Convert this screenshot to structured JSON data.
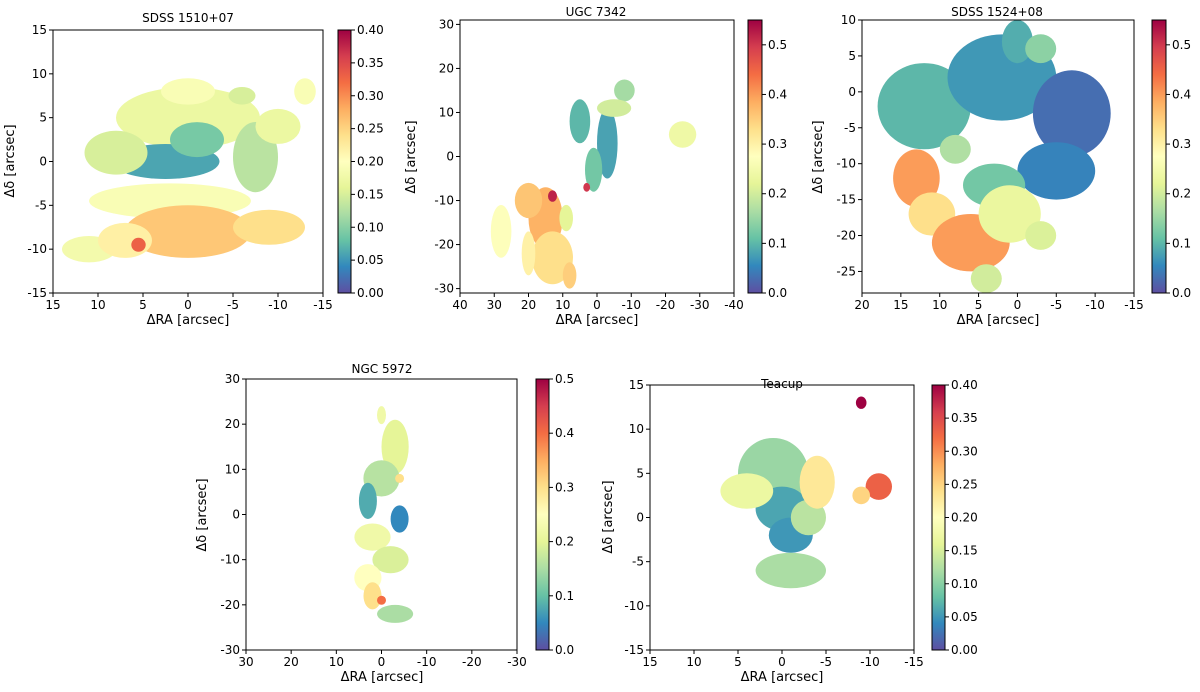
{
  "figure": {
    "type": "multi-panel spatial map with colorbars",
    "colormap": "Spectral_r"
  },
  "chart_data": [
    {
      "type": "heatmap",
      "title": "SDSS 1510+07",
      "xlabel": "ΔRA [arcsec]",
      "ylabel": "Δδ [arcsec]",
      "xlim": [
        15,
        -15
      ],
      "ylim": [
        -15,
        15
      ],
      "xticks": [
        15,
        10,
        5,
        0,
        -5,
        -10,
        -15
      ],
      "yticks": [
        -15,
        -10,
        -5,
        0,
        5,
        10,
        15
      ],
      "colorbar": {
        "range": [
          0.0,
          0.4
        ],
        "ticks": [
          "0.00",
          "0.05",
          "0.10",
          "0.15",
          "0.20",
          "0.25",
          "0.30",
          "0.35",
          "0.40"
        ]
      },
      "blobs": [
        {
          "x": 0,
          "y": 5,
          "rx": 8,
          "ry": 3.5,
          "value": 0.17
        },
        {
          "x": 0,
          "y": 8,
          "rx": 3,
          "ry": 1.5,
          "value": 0.19
        },
        {
          "x": 2.5,
          "y": 0,
          "rx": 6,
          "ry": 2,
          "value": 0.06
        },
        {
          "x": -1,
          "y": 2.5,
          "rx": 3,
          "ry": 2,
          "value": 0.09
        },
        {
          "x": -7.5,
          "y": 0.5,
          "rx": 2.5,
          "ry": 4,
          "value": 0.13
        },
        {
          "x": 8,
          "y": 1,
          "rx": 3.5,
          "ry": 2.5,
          "value": 0.15
        },
        {
          "x": -10,
          "y": 4,
          "rx": 2.5,
          "ry": 2,
          "value": 0.17
        },
        {
          "x": 2,
          "y": -4.5,
          "rx": 9,
          "ry": 2,
          "value": 0.19
        },
        {
          "x": 0,
          "y": -8,
          "rx": 7,
          "ry": 3,
          "value": 0.26
        },
        {
          "x": -9,
          "y": -7.5,
          "rx": 4,
          "ry": 2,
          "value": 0.24
        },
        {
          "x": 11,
          "y": -10,
          "rx": 3,
          "ry": 1.5,
          "value": 0.18
        },
        {
          "x": 7,
          "y": -9,
          "rx": 3,
          "ry": 2,
          "value": 0.22
        },
        {
          "x": 5.5,
          "y": -9.5,
          "rx": 0.8,
          "ry": 0.8,
          "value": 0.33
        },
        {
          "x": -13,
          "y": 8,
          "rx": 1.2,
          "ry": 1.5,
          "value": 0.19
        },
        {
          "x": -6,
          "y": 7.5,
          "rx": 1.5,
          "ry": 1,
          "value": 0.15
        }
      ]
    },
    {
      "type": "heatmap",
      "title": "UGC 7342",
      "xlabel": "ΔRA [arcsec]",
      "ylabel": "Δδ [arcsec]",
      "xlim": [
        40,
        -40
      ],
      "ylim": [
        -31,
        31
      ],
      "xticks": [
        40,
        30,
        20,
        10,
        0,
        -10,
        -20,
        -30,
        -40
      ],
      "yticks": [
        -30,
        -20,
        -10,
        0,
        10,
        20,
        30
      ],
      "colorbar": {
        "range": [
          0.0,
          0.55
        ],
        "ticks": [
          "0.0",
          "0.1",
          "0.2",
          "0.3",
          "0.4",
          "0.5"
        ]
      },
      "blobs": [
        {
          "x": -3,
          "y": 3,
          "rx": 3,
          "ry": 8,
          "value": 0.08
        },
        {
          "x": 1,
          "y": -3,
          "rx": 2.5,
          "ry": 5,
          "value": 0.12
        },
        {
          "x": 5,
          "y": 8,
          "rx": 3,
          "ry": 5,
          "value": 0.1
        },
        {
          "x": -8,
          "y": 15,
          "rx": 3,
          "ry": 2.5,
          "value": 0.16
        },
        {
          "x": -5,
          "y": 11,
          "rx": 5,
          "ry": 2,
          "value": 0.2
        },
        {
          "x": -25,
          "y": 5,
          "rx": 4,
          "ry": 3,
          "value": 0.24
        },
        {
          "x": 15,
          "y": -14,
          "rx": 5,
          "ry": 7,
          "value": 0.38
        },
        {
          "x": 13,
          "y": -23,
          "rx": 6,
          "ry": 6,
          "value": 0.33
        },
        {
          "x": 20,
          "y": -10,
          "rx": 4,
          "ry": 4,
          "value": 0.36
        },
        {
          "x": 28,
          "y": -17,
          "rx": 3,
          "ry": 6,
          "value": 0.27
        },
        {
          "x": 20,
          "y": -22,
          "rx": 2,
          "ry": 5,
          "value": 0.3
        },
        {
          "x": 13,
          "y": -9,
          "rx": 1.3,
          "ry": 1.3,
          "value": 0.52
        },
        {
          "x": 3,
          "y": -7,
          "rx": 1,
          "ry": 1,
          "value": 0.5
        },
        {
          "x": 9,
          "y": -14,
          "rx": 2,
          "ry": 3,
          "value": 0.22
        },
        {
          "x": 8,
          "y": -27,
          "rx": 2,
          "ry": 3,
          "value": 0.35
        }
      ]
    },
    {
      "type": "heatmap",
      "title": "SDSS 1524+08",
      "xlabel": "ΔRA [arcsec]",
      "ylabel": "Δδ [arcsec]",
      "xlim": [
        20,
        -15
      ],
      "ylim": [
        -28,
        10
      ],
      "xticks": [
        20,
        15,
        10,
        5,
        0,
        -5,
        -10,
        -15
      ],
      "yticks": [
        -25,
        -20,
        -15,
        -10,
        -5,
        0,
        5,
        10
      ],
      "colorbar": {
        "range": [
          0.0,
          0.55
        ],
        "ticks": [
          "0.0",
          "0.1",
          "0.2",
          "0.3",
          "0.4",
          "0.5"
        ]
      },
      "blobs": [
        {
          "x": 12,
          "y": -2,
          "rx": 6,
          "ry": 6,
          "value": 0.1
        },
        {
          "x": 2,
          "y": 2,
          "rx": 7,
          "ry": 6,
          "value": 0.07
        },
        {
          "x": -7,
          "y": -3,
          "rx": 5,
          "ry": 6,
          "value": 0.03
        },
        {
          "x": -5,
          "y": -11,
          "rx": 5,
          "ry": 4,
          "value": 0.05
        },
        {
          "x": 0,
          "y": 7,
          "rx": 2,
          "ry": 3,
          "value": 0.09
        },
        {
          "x": -3,
          "y": 6,
          "rx": 2,
          "ry": 2,
          "value": 0.14
        },
        {
          "x": 3,
          "y": -13,
          "rx": 4,
          "ry": 3,
          "value": 0.12
        },
        {
          "x": 13,
          "y": -12,
          "rx": 3,
          "ry": 4,
          "value": 0.4
        },
        {
          "x": 11,
          "y": -17,
          "rx": 3,
          "ry": 3,
          "value": 0.33
        },
        {
          "x": 6,
          "y": -21,
          "rx": 5,
          "ry": 4,
          "value": 0.4
        },
        {
          "x": 1,
          "y": -17,
          "rx": 4,
          "ry": 4,
          "value": 0.23
        },
        {
          "x": -3,
          "y": -20,
          "rx": 2,
          "ry": 2,
          "value": 0.21
        },
        {
          "x": 4,
          "y": -26,
          "rx": 2,
          "ry": 2,
          "value": 0.2
        },
        {
          "x": 8,
          "y": -8,
          "rx": 2,
          "ry": 2,
          "value": 0.17
        }
      ]
    },
    {
      "type": "heatmap",
      "title": "NGC 5972",
      "xlabel": "ΔRA [arcsec]",
      "ylabel": "Δδ [arcsec]",
      "xlim": [
        30,
        -30
      ],
      "ylim": [
        -30,
        30
      ],
      "xticks": [
        30,
        20,
        10,
        0,
        -10,
        -20,
        -30
      ],
      "yticks": [
        -30,
        -20,
        -10,
        0,
        10,
        20,
        30
      ],
      "colorbar": {
        "range": [
          0.0,
          0.5
        ],
        "ticks": [
          "0.0",
          "0.1",
          "0.2",
          "0.3",
          "0.4",
          "0.5"
        ]
      },
      "blobs": [
        {
          "x": -3,
          "y": 15,
          "rx": 3,
          "ry": 6,
          "value": 0.2
        },
        {
          "x": 0,
          "y": 8,
          "rx": 4,
          "ry": 4,
          "value": 0.16
        },
        {
          "x": 3,
          "y": 3,
          "rx": 2,
          "ry": 4,
          "value": 0.08
        },
        {
          "x": -4,
          "y": -1,
          "rx": 2,
          "ry": 3,
          "value": 0.05
        },
        {
          "x": 2,
          "y": -5,
          "rx": 4,
          "ry": 3,
          "value": 0.22
        },
        {
          "x": -2,
          "y": -10,
          "rx": 4,
          "ry": 3,
          "value": 0.19
        },
        {
          "x": 3,
          "y": -14,
          "rx": 3,
          "ry": 3,
          "value": 0.25
        },
        {
          "x": 2,
          "y": -18,
          "rx": 2,
          "ry": 3,
          "value": 0.3
        },
        {
          "x": 0,
          "y": -19,
          "rx": 1,
          "ry": 1,
          "value": 0.4
        },
        {
          "x": -3,
          "y": -22,
          "rx": 4,
          "ry": 2,
          "value": 0.15
        },
        {
          "x": 0,
          "y": 22,
          "rx": 1,
          "ry": 2,
          "value": 0.22
        },
        {
          "x": -4,
          "y": 8,
          "rx": 1,
          "ry": 1,
          "value": 0.3
        }
      ]
    },
    {
      "type": "heatmap",
      "title": "Teacup",
      "xlabel": "ΔRA [arcsec]",
      "ylabel": "Δδ [arcsec]",
      "xlim": [
        15,
        -15
      ],
      "ylim": [
        -15,
        15
      ],
      "xticks": [
        15,
        10,
        5,
        0,
        -5,
        -10,
        -15
      ],
      "yticks": [
        -15,
        -10,
        -5,
        0,
        5,
        10,
        15
      ],
      "colorbar": {
        "range": [
          0.0,
          0.4
        ],
        "ticks": [
          "0.00",
          "0.05",
          "0.10",
          "0.15",
          "0.20",
          "0.25",
          "0.30",
          "0.35",
          "0.40"
        ]
      },
      "blobs": [
        {
          "x": 1,
          "y": 5,
          "rx": 4,
          "ry": 4,
          "value": 0.11
        },
        {
          "x": 0,
          "y": 1,
          "rx": 3,
          "ry": 2.5,
          "value": 0.06
        },
        {
          "x": -1,
          "y": -2,
          "rx": 2.5,
          "ry": 2,
          "value": 0.05
        },
        {
          "x": -3,
          "y": 0,
          "rx": 2,
          "ry": 2,
          "value": 0.13
        },
        {
          "x": -4,
          "y": 4,
          "rx": 2,
          "ry": 3,
          "value": 0.23
        },
        {
          "x": 4,
          "y": 3,
          "rx": 3,
          "ry": 2,
          "value": 0.17
        },
        {
          "x": -1,
          "y": -6,
          "rx": 4,
          "ry": 2,
          "value": 0.12
        },
        {
          "x": -11,
          "y": 3.5,
          "rx": 1.5,
          "ry": 1.5,
          "value": 0.33
        },
        {
          "x": -9,
          "y": 2.5,
          "rx": 1,
          "ry": 1,
          "value": 0.25
        },
        {
          "x": -9,
          "y": 13,
          "rx": 0.6,
          "ry": 0.7,
          "value": 0.4
        }
      ]
    }
  ]
}
